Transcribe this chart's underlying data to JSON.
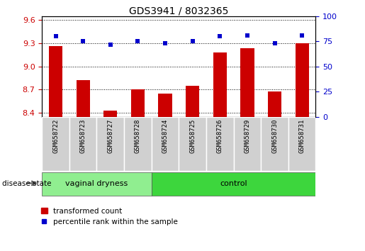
{
  "title": "GDS3941 / 8032365",
  "samples": [
    "GSM658722",
    "GSM658723",
    "GSM658727",
    "GSM658728",
    "GSM658724",
    "GSM658725",
    "GSM658726",
    "GSM658729",
    "GSM658730",
    "GSM658731"
  ],
  "bar_values": [
    9.26,
    8.82,
    8.43,
    8.7,
    8.65,
    8.75,
    9.18,
    9.24,
    8.68,
    9.3
  ],
  "scatter_values": [
    80,
    75,
    72,
    75,
    73,
    75,
    80,
    81,
    73,
    81
  ],
  "ylim_left": [
    8.35,
    9.65
  ],
  "ylim_right": [
    0,
    100
  ],
  "yticks_left": [
    8.4,
    8.7,
    9.0,
    9.3,
    9.6
  ],
  "yticks_right": [
    0,
    25,
    50,
    75,
    100
  ],
  "groups": [
    {
      "label": "vaginal dryness",
      "indices": [
        0,
        1,
        2,
        3
      ],
      "color": "#90EE90"
    },
    {
      "label": "control",
      "indices": [
        4,
        5,
        6,
        7,
        8,
        9
      ],
      "color": "#3DD63D"
    }
  ],
  "bar_color": "#CC0000",
  "scatter_color": "#0000CC",
  "legend_bar_label": "transformed count",
  "legend_scatter_label": "percentile rank within the sample",
  "disease_state_label": "disease state",
  "hgrid_color": "#000000",
  "bg_color": "#ffffff",
  "axis_color_left": "#CC0000",
  "axis_color_right": "#0000CC",
  "xlabel_bg": "#d0d0d0",
  "bar_width": 0.5
}
